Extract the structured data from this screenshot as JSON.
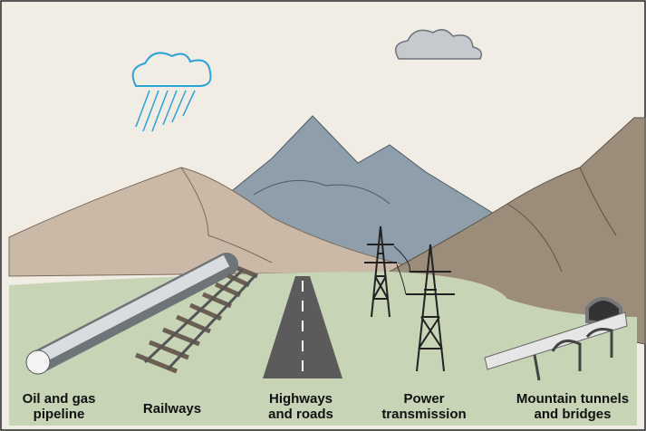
{
  "labels": [
    {
      "lines": [
        "Oil and gas",
        "pipeline"
      ]
    },
    {
      "lines": [
        "Railways"
      ]
    },
    {
      "lines": [
        "Highways",
        "and roads"
      ]
    },
    {
      "lines": [
        "Power",
        "transmission"
      ]
    },
    {
      "lines": [
        "Mountain tunnels",
        "and bridges"
      ]
    }
  ]
}
